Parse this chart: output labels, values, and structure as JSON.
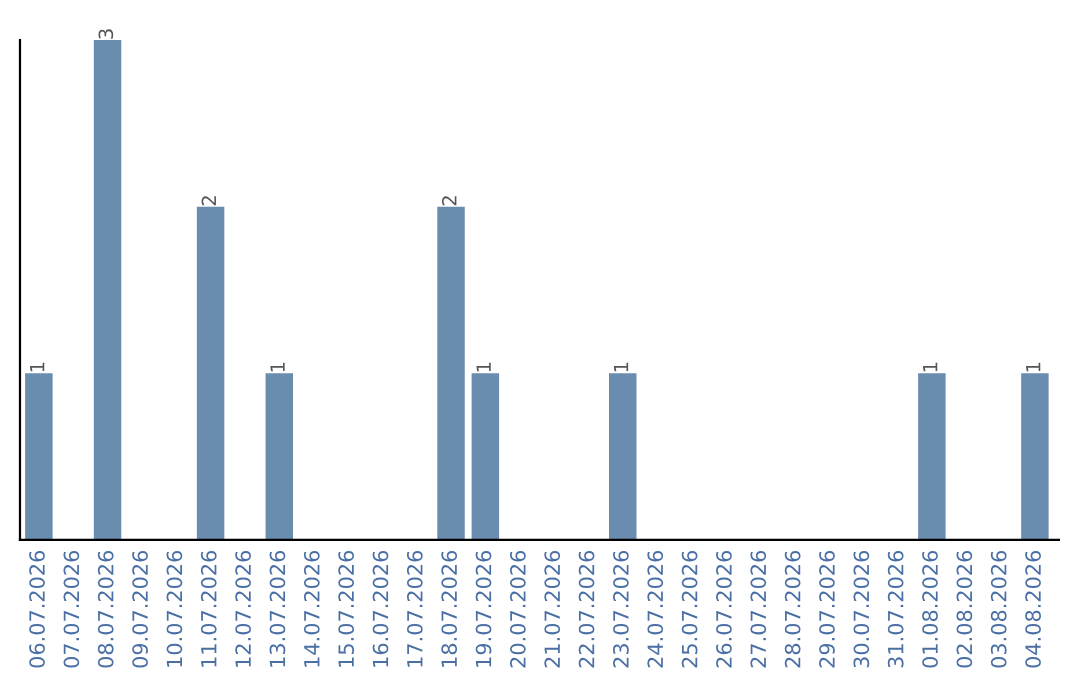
{
  "chart_data": {
    "type": "bar",
    "categories": [
      "06.07.2026",
      "07.07.2026",
      "08.07.2026",
      "09.07.2026",
      "10.07.2026",
      "11.07.2026",
      "12.07.2026",
      "13.07.2026",
      "14.07.2026",
      "15.07.2026",
      "16.07.2026",
      "17.07.2026",
      "18.07.2026",
      "19.07.2026",
      "20.07.2026",
      "21.07.2026",
      "22.07.2026",
      "23.07.2026",
      "24.07.2026",
      "25.07.2026",
      "26.07.2026",
      "27.07.2026",
      "28.07.2026",
      "29.07.2026",
      "30.07.2026",
      "31.07.2026",
      "01.08.2026",
      "02.08.2026",
      "03.08.2026",
      "04.08.2026"
    ],
    "values": [
      1,
      0,
      3,
      0,
      0,
      2,
      0,
      1,
      0,
      0,
      0,
      0,
      2,
      1,
      0,
      0,
      0,
      1,
      0,
      0,
      0,
      0,
      0,
      0,
      0,
      0,
      1,
      0,
      0,
      1
    ],
    "value_labels": [
      "1",
      null,
      "3",
      null,
      null,
      "2",
      null,
      "1",
      null,
      null,
      null,
      null,
      "2",
      "1",
      null,
      null,
      null,
      "1",
      null,
      null,
      null,
      null,
      null,
      null,
      null,
      null,
      "1",
      null,
      null,
      "1"
    ],
    "color": "#6a8caf",
    "ylim": [
      0,
      3
    ],
    "tick_labels": "x",
    "grid": false,
    "legend": false
  }
}
